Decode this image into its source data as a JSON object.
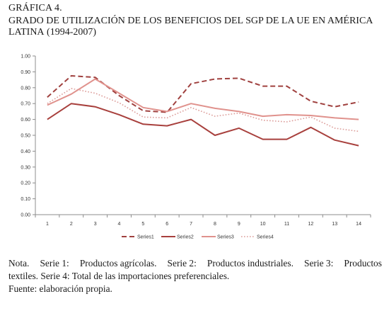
{
  "figure": {
    "label": "GRÁFICA 4.",
    "title_line1": "GRADO DE UTILIZACIÓN DE LOS BENEFICIOS DEL SGP DE LA UE EN AMÉRICA",
    "title_line2_caps": "LATINA",
    "title_line2_rest": " (1994-2007)"
  },
  "chart_data": {
    "type": "line",
    "title": "",
    "xlabel": "",
    "ylabel": "",
    "categories": [
      "1",
      "2",
      "3",
      "4",
      "5",
      "6",
      "7",
      "8",
      "9",
      "10",
      "11",
      "12",
      "13",
      "14"
    ],
    "y_ticks": [
      "0.00",
      "0.10",
      "0.20",
      "0.30",
      "0.40",
      "0.50",
      "0.60",
      "0.70",
      "0.80",
      "0.90",
      "1.00"
    ],
    "ylim": [
      0,
      1.0
    ],
    "grid": false,
    "legend_position": "bottom",
    "series": [
      {
        "name": "Series1",
        "style": "dashed",
        "color": "#a0413f",
        "values": [
          0.74,
          0.875,
          0.865,
          0.75,
          0.655,
          0.645,
          0.825,
          0.855,
          0.86,
          0.81,
          0.81,
          0.715,
          0.68,
          0.71
        ]
      },
      {
        "name": "Series2",
        "style": "solid",
        "color": "#a8403d",
        "values": [
          0.6,
          0.7,
          0.68,
          0.63,
          0.57,
          0.56,
          0.6,
          0.5,
          0.545,
          0.475,
          0.475,
          0.55,
          0.47,
          0.435
        ]
      },
      {
        "name": "Series3",
        "style": "solid",
        "color": "#e0928d",
        "values": [
          0.69,
          0.76,
          0.855,
          0.765,
          0.675,
          0.65,
          0.7,
          0.67,
          0.65,
          0.62,
          0.63,
          0.625,
          0.61,
          0.6
        ]
      },
      {
        "name": "Series4",
        "style": "dotted",
        "color": "#dc9c99",
        "values": [
          0.7,
          0.795,
          0.765,
          0.705,
          0.615,
          0.61,
          0.675,
          0.62,
          0.64,
          0.595,
          0.585,
          0.615,
          0.545,
          0.525
        ]
      }
    ]
  },
  "notes": {
    "line1_parts": [
      "Nota.",
      "Serie 1:",
      "Productos agrícolas.",
      "Serie 2:",
      "Productos industriales.",
      "Serie 3:",
      "Productos"
    ],
    "line2": "textiles. Serie 4: Total de las importaciones preferenciales.",
    "line3": "Fuente: elaboración propia."
  }
}
